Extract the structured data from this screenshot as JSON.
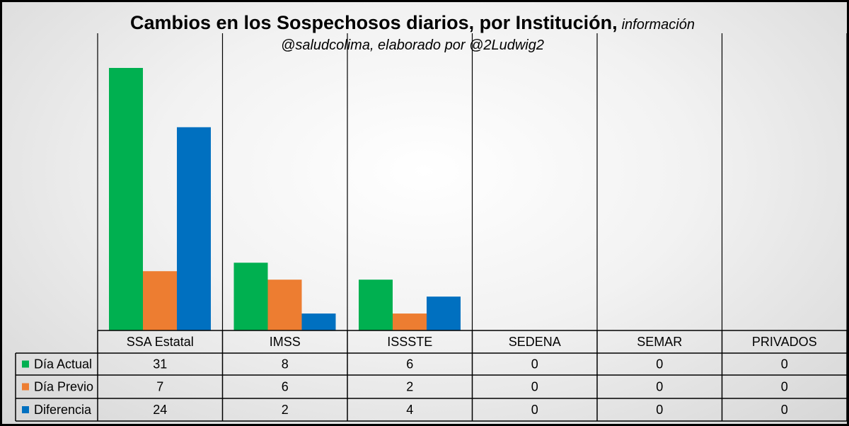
{
  "chart_data": {
    "type": "bar",
    "title": "Cambios en los Sospechosos diarios, por Institución,",
    "title_suffix": "información",
    "subtitle": "@saludcolima, elaborado por @2Ludwig2",
    "categories": [
      "SSA Estatal",
      "IMSS",
      "ISSSTE",
      "SEDENA",
      "SEMAR",
      "PRIVADOS"
    ],
    "series": [
      {
        "name": "Día Actual",
        "color": "#00b050",
        "values": [
          31,
          8,
          6,
          0,
          0,
          0
        ]
      },
      {
        "name": "Día Previo",
        "color": "#ed7d31",
        "values": [
          7,
          6,
          2,
          0,
          0,
          0
        ]
      },
      {
        "name": "Diferencia",
        "color": "#0070c0",
        "values": [
          24,
          2,
          4,
          0,
          0,
          0
        ]
      }
    ],
    "ylim": [
      0,
      32
    ],
    "grid": false,
    "legend": "data table",
    "data_table": true
  }
}
